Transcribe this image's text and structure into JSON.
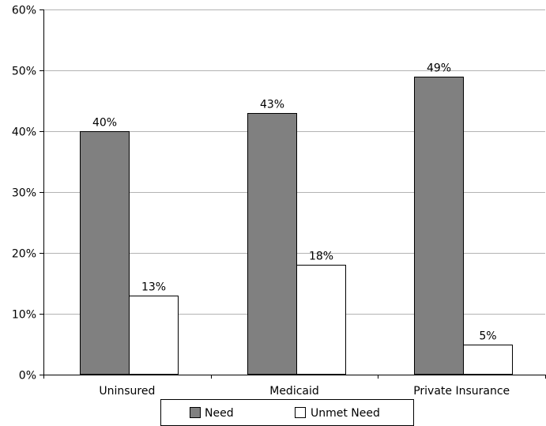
{
  "chart_data": {
    "type": "bar",
    "categories": [
      "Uninsured",
      "Medicaid",
      "Private Insurance"
    ],
    "series": [
      {
        "name": "Need",
        "values": [
          40,
          43,
          49
        ],
        "value_labels": [
          "40%",
          "43%",
          "49%"
        ],
        "color": "#808080"
      },
      {
        "name": "Unmet Need",
        "values": [
          13,
          18,
          5
        ],
        "value_labels": [
          "13%",
          "18%",
          "5%"
        ],
        "color": "#ffffff"
      }
    ],
    "y_ticks": [
      {
        "value": 0,
        "label": "0%"
      },
      {
        "value": 10,
        "label": "10%"
      },
      {
        "value": 20,
        "label": "20%"
      },
      {
        "value": 30,
        "label": "30%"
      },
      {
        "value": 40,
        "label": "40%"
      },
      {
        "value": 50,
        "label": "50%"
      },
      {
        "value": 60,
        "label": "60%"
      }
    ],
    "ylim": [
      0,
      60
    ],
    "grid": true,
    "legend_position": "bottom",
    "title": "",
    "xlabel": "",
    "ylabel": ""
  }
}
